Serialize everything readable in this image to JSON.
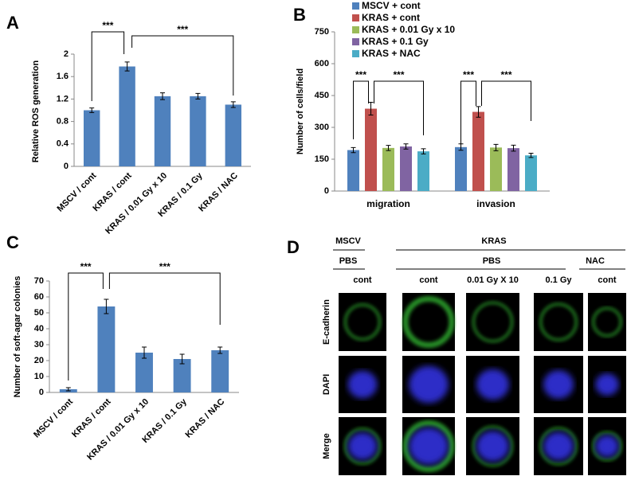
{
  "chart_data": [
    {
      "panel_label": "A",
      "type": "bar",
      "categories": [
        "MSCV / cont",
        "KRAS / cont",
        "KRAS / 0.01 Gy x 10",
        "KRAS / 0.1 Gy",
        "KRAS / NAC"
      ],
      "values": [
        1.0,
        1.78,
        1.25,
        1.25,
        1.1
      ],
      "errors": [
        0.04,
        0.08,
        0.06,
        0.05,
        0.05
      ],
      "color": "#4f81bd",
      "ylabel": "Relative ROS generation",
      "ylim": [
        0,
        2
      ],
      "yticks": [
        0,
        0.4,
        0.8,
        1.2,
        1.6,
        2
      ],
      "annotations": [
        "***",
        "***"
      ]
    },
    {
      "panel_label": "B",
      "type": "bar",
      "categories": [
        "migration",
        "invasion"
      ],
      "series": [
        {
          "name": "MSCV + cont",
          "color": "#4f81bd",
          "values": [
            193,
            207
          ],
          "errors": [
            12,
            15
          ]
        },
        {
          "name": "KRAS + cont",
          "color": "#c0504d",
          "values": [
            388,
            373
          ],
          "errors": [
            30,
            25
          ]
        },
        {
          "name": "KRAS + 0.01 Gy x 10",
          "color": "#9bbb59",
          "values": [
            203,
            205
          ],
          "errors": [
            12,
            15
          ]
        },
        {
          "name": "KRAS + 0.1 Gy",
          "color": "#8064a2",
          "values": [
            210,
            202
          ],
          "errors": [
            12,
            14
          ]
        },
        {
          "name": "KRAS + NAC",
          "color": "#4bacc6",
          "values": [
            187,
            168
          ],
          "errors": [
            12,
            10
          ]
        }
      ],
      "ylabel": "Number of cells/field",
      "ylim": [
        0,
        750
      ],
      "yticks": [
        0,
        150,
        300,
        450,
        600,
        750
      ],
      "annotations": [
        "***",
        "***",
        "***",
        "***"
      ],
      "legend": "top"
    },
    {
      "panel_label": "C",
      "type": "bar",
      "categories": [
        "MSCV / cont",
        "KRAS / cont",
        "KRAS / 0.01 Gy x 10",
        "KRAS / 0.1 Gy",
        "KRAS / NAC"
      ],
      "values": [
        2,
        54,
        25,
        21,
        26.5
      ],
      "errors": [
        1,
        4.5,
        3.5,
        3,
        2
      ],
      "color": "#4f81bd",
      "ylabel": "Number of soft-agar colonies",
      "ylim": [
        0,
        70
      ],
      "yticks": [
        0,
        10,
        20,
        30,
        40,
        50,
        60,
        70
      ],
      "annotations": [
        "***",
        "***"
      ]
    }
  ],
  "panel_d": {
    "panel_label": "D",
    "groups": [
      "MSCV",
      "KRAS"
    ],
    "treatments": [
      "PBS",
      "PBS",
      "NAC"
    ],
    "conditions": [
      "cont",
      "cont",
      "0.01 Gy X 10",
      "0.1 Gy",
      "cont"
    ],
    "rows": [
      "E-cadherin",
      "DAPI",
      "Merge"
    ]
  }
}
